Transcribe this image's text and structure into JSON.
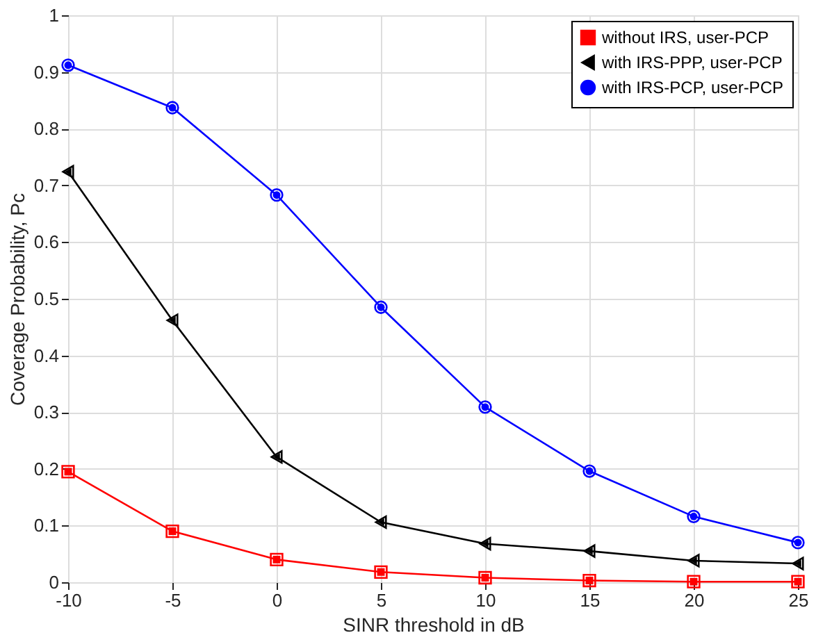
{
  "chart_data": {
    "type": "line",
    "xlabel": "SINR threshold in dB",
    "ylabel": "Coverage Probability, Pc",
    "x": [
      -10,
      -5,
      0,
      5,
      10,
      15,
      20,
      25
    ],
    "series": [
      {
        "name": "without IRS, user-PCP",
        "color": "#ff0000",
        "marker": "square",
        "values": [
          0.195,
          0.09,
          0.04,
          0.018,
          0.008,
          0.003,
          0.001,
          0.001
        ]
      },
      {
        "name": "with IRS-PPP, user-PCP",
        "color": "#000000",
        "marker": "triangle",
        "values": [
          0.724,
          0.462,
          0.221,
          0.106,
          0.068,
          0.055,
          0.038,
          0.033
        ]
      },
      {
        "name": "with IRS-PCP, user-PCP",
        "color": "#0000ff",
        "marker": "circle",
        "values": [
          0.912,
          0.837,
          0.683,
          0.485,
          0.309,
          0.196,
          0.116,
          0.07
        ]
      }
    ],
    "xlim": [
      -10,
      25
    ],
    "xticks": [
      -10,
      -5,
      0,
      5,
      10,
      15,
      20,
      25
    ],
    "ylim": [
      0,
      1
    ],
    "yticks": [
      0,
      0.1,
      0.2,
      0.3,
      0.4,
      0.5,
      0.6,
      0.7,
      0.8,
      0.9,
      1
    ],
    "grid": true,
    "legend": "top right",
    "line_style": "solid"
  }
}
